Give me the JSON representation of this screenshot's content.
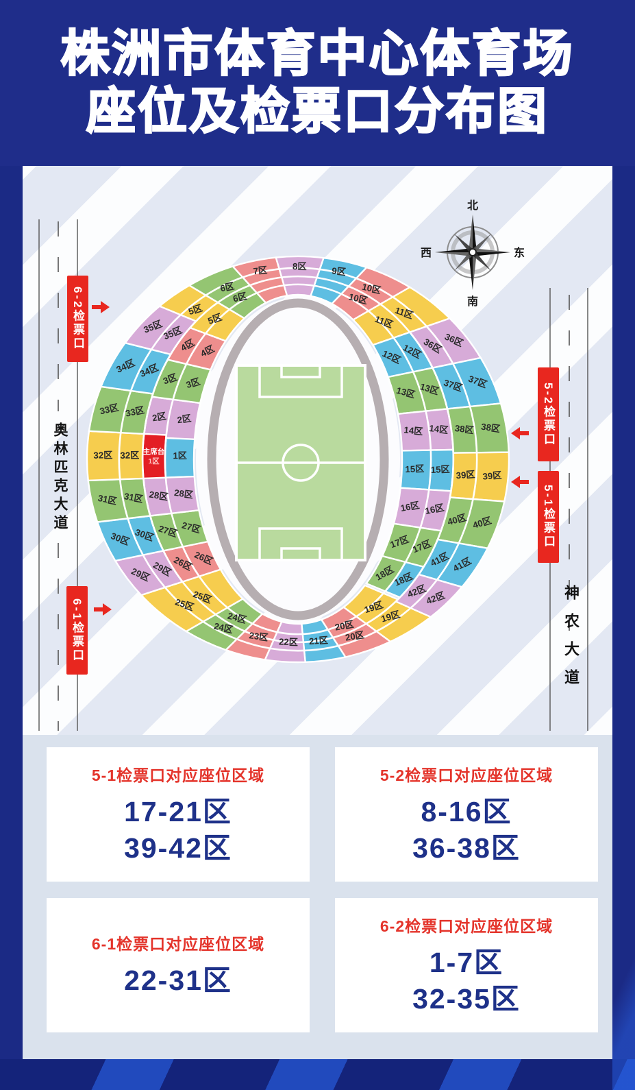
{
  "title": {
    "line1": "株洲市体育中心体育场",
    "line2": "座位及检票口分布图"
  },
  "compass": {
    "north": "北",
    "south": "南",
    "west": "西",
    "east": "东"
  },
  "roads": {
    "left": "奥林匹克大道",
    "right": "神农大道"
  },
  "gates": {
    "g62": "6-2检票口",
    "g61": "6-1检票口",
    "g52": "5-2检票口",
    "g51": "5-1检票口"
  },
  "cards": [
    {
      "title": "5-1检票口对应座位区域",
      "lines": [
        "17-21区",
        "39-42区"
      ]
    },
    {
      "title": "5-2检票口对应座位区域",
      "lines": [
        "8-16区",
        "36-38区"
      ]
    },
    {
      "title": "6-1检票口对应座位区域",
      "lines": [
        "22-31区"
      ]
    },
    {
      "title": "6-2检票口对应座位区域",
      "lines": [
        "1-7区",
        "32-35区"
      ]
    }
  ],
  "colors": {
    "yellow": "#F6CD4E",
    "green": "#94C572",
    "salmon": "#EE8E8D",
    "plum": "#D7ABD8",
    "blue": "#5EBEE2",
    "vip": "#E31E24",
    "gate": "#E8271F",
    "card_title": "#E4342B",
    "card_number": "#1E3189",
    "title_bg": "#1F2D8A",
    "track": "#B6AEB1",
    "pitch": "#B9DA9E"
  },
  "stadium": {
    "vip": {
      "label": "主席台",
      "sub": "1区",
      "a0": 534,
      "a1": 548,
      "t0": 0.27,
      "t1": 0.48
    },
    "sections": [
      {
        "n": "1区",
        "c": "blue",
        "a0": 534,
        "a1": 548,
        "t0": 0,
        "t1": 0.27,
        "lt": [
          0.13
        ]
      },
      {
        "n": "2区",
        "c": "plum",
        "a0": 187,
        "a1": 200,
        "t0": 0,
        "t1": 0.48,
        "lt": [
          0.12,
          0.36
        ]
      },
      {
        "n": "3区",
        "c": "green",
        "a0": 200,
        "a1": 213,
        "t0": 0,
        "t1": 0.48,
        "lt": [
          0.12,
          0.36
        ]
      },
      {
        "n": "4区",
        "c": "salmon",
        "a0": 213,
        "a1": 226,
        "t0": 0,
        "t1": 0.48,
        "lt": [
          0.12,
          0.36
        ]
      },
      {
        "n": "5区",
        "c": "yellow",
        "a0": 226,
        "a1": 239,
        "t0": 0,
        "t1": 1,
        "lt": [
          0.3,
          0.6
        ]
      },
      {
        "n": "6区",
        "c": "green",
        "a0": 239,
        "a1": 252,
        "t0": 0,
        "t1": 1,
        "lt": [
          0.33,
          0.62
        ]
      },
      {
        "n": "7区",
        "c": "salmon",
        "a0": 252,
        "a1": 264,
        "t0": 0,
        "t1": 1,
        "lt": [
          0.72
        ]
      },
      {
        "n": "8区",
        "c": "plum",
        "a0": 264,
        "a1": 277,
        "t0": 0,
        "t1": 1,
        "lt": [
          0.72
        ]
      },
      {
        "n": "9区",
        "c": "blue",
        "a0": 277,
        "a1": 289,
        "t0": 0,
        "t1": 1,
        "lt": [
          0.72
        ]
      },
      {
        "n": "10区",
        "c": "salmon",
        "a0": 289,
        "a1": 302,
        "t0": 0,
        "t1": 1,
        "lt": [
          0.33,
          0.62
        ]
      },
      {
        "n": "11区",
        "c": "yellow",
        "a0": 302,
        "a1": 316,
        "t0": 0,
        "t1": 1,
        "lt": [
          0.3,
          0.6
        ]
      },
      {
        "n": "12区",
        "c": "blue",
        "a0": 316,
        "a1": 330,
        "t0": 0,
        "t1": 0.48,
        "lt": [
          0.12,
          0.36
        ]
      },
      {
        "n": "13区",
        "c": "green",
        "a0": 330,
        "a1": 344,
        "t0": 0,
        "t1": 0.48,
        "lt": [
          0.12,
          0.36
        ]
      },
      {
        "n": "14区",
        "c": "plum",
        "a0": 344,
        "a1": 357,
        "t0": 0,
        "t1": 0.48,
        "lt": [
          0.12,
          0.36
        ]
      },
      {
        "n": "15区",
        "c": "blue",
        "a0": 357,
        "a1": 370,
        "t0": 0,
        "t1": 0.48,
        "lt": [
          0.12,
          0.36
        ]
      },
      {
        "n": "16区",
        "c": "plum",
        "a0": 370,
        "a1": 383,
        "t0": 0,
        "t1": 0.48,
        "lt": [
          0.12,
          0.36
        ]
      },
      {
        "n": "17区",
        "c": "green",
        "a0": 383,
        "a1": 396,
        "t0": 0,
        "t1": 0.48,
        "lt": [
          0.12,
          0.36
        ]
      },
      {
        "n": "18区",
        "c": "green",
        "a0": 396,
        "a1": 409,
        "t0": 0,
        "t1": 0.27,
        "lt": [
          0.13
        ]
      },
      {
        "n": "18区",
        "c": "blue",
        "a0": 396,
        "a1": 409,
        "t0": 0.27,
        "t1": 0.48,
        "lt": [
          0.37
        ]
      },
      {
        "n": "19区",
        "c": "yellow",
        "a0": 410,
        "a1": 424,
        "t0": 0,
        "t1": 1,
        "lt": [
          0.33,
          0.62
        ]
      },
      {
        "n": "20区",
        "c": "salmon",
        "a0": 424,
        "a1": 437,
        "t0": 0,
        "t1": 1,
        "lt": [
          0.33,
          0.62
        ]
      },
      {
        "n": "21区",
        "c": "blue",
        "a0": 437,
        "a1": 448,
        "t0": 0,
        "t1": 1,
        "lt": [
          0.5
        ]
      },
      {
        "n": "22区",
        "c": "plum",
        "a0": 448,
        "a1": 459,
        "t0": 0,
        "t1": 1,
        "lt": [
          0.5
        ]
      },
      {
        "n": "23区",
        "c": "salmon",
        "a0": 459,
        "a1": 470,
        "t0": 0,
        "t1": 1,
        "lt": [
          0.5
        ]
      },
      {
        "n": "24区",
        "c": "green",
        "a0": 470,
        "a1": 482,
        "t0": 0,
        "t1": 1,
        "lt": [
          0.33,
          0.62
        ]
      },
      {
        "n": "25区",
        "c": "yellow",
        "a0": 482,
        "a1": 498,
        "t0": 0,
        "t1": 1,
        "lt": [
          0.42,
          0.68
        ]
      },
      {
        "n": "26区",
        "c": "salmon",
        "a0": 498,
        "a1": 510,
        "t0": 0,
        "t1": 0.48,
        "lt": [
          0.12,
          0.36
        ]
      },
      {
        "n": "27区",
        "c": "green",
        "a0": 510,
        "a1": 522,
        "t0": 0,
        "t1": 0.48,
        "lt": [
          0.12,
          0.36
        ]
      },
      {
        "n": "28区",
        "c": "plum",
        "a0": 522,
        "a1": 534,
        "t0": 0,
        "t1": 0.48,
        "lt": [
          0.12,
          0.36
        ]
      },
      {
        "n": "29区",
        "c": "plum",
        "a0": 498,
        "a1": 510,
        "t0": 0.48,
        "t1": 1,
        "lt": [
          0.6,
          0.85
        ]
      },
      {
        "n": "30区",
        "c": "blue",
        "a0": 510,
        "a1": 522,
        "t0": 0.48,
        "t1": 1,
        "lt": [
          0.6,
          0.85
        ]
      },
      {
        "n": "31区",
        "c": "green",
        "a0": 522,
        "a1": 534,
        "t0": 0.48,
        "t1": 1,
        "lt": [
          0.6,
          0.85
        ]
      },
      {
        "n": "32区",
        "c": "yellow",
        "a0": 534,
        "a1": 548,
        "t0": 0.48,
        "t1": 1,
        "lt": [
          0.6,
          0.85
        ]
      },
      {
        "n": "33区",
        "c": "green",
        "a0": 188,
        "a1": 201,
        "t0": 0.48,
        "t1": 1,
        "lt": [
          0.6,
          0.85
        ]
      },
      {
        "n": "34区",
        "c": "blue",
        "a0": 201,
        "a1": 215,
        "t0": 0.48,
        "t1": 1,
        "lt": [
          0.6,
          0.85
        ]
      },
      {
        "n": "35区",
        "c": "plum",
        "a0": 215,
        "a1": 229,
        "t0": 0.48,
        "t1": 1,
        "lt": [
          0.6,
          0.85
        ]
      },
      {
        "n": "36区",
        "c": "plum",
        "a0": 316,
        "a1": 330,
        "t0": 0.48,
        "t1": 1,
        "lt": [
          0.6,
          0.85
        ]
      },
      {
        "n": "37区",
        "c": "blue",
        "a0": 330,
        "a1": 344,
        "t0": 0.48,
        "t1": 1,
        "lt": [
          0.6,
          0.85
        ]
      },
      {
        "n": "38区",
        "c": "green",
        "a0": 344,
        "a1": 358,
        "t0": 0.48,
        "t1": 1,
        "lt": [
          0.6,
          0.85
        ]
      },
      {
        "n": "39区",
        "c": "yellow",
        "a0": 358,
        "a1": 372,
        "t0": 0.48,
        "t1": 1,
        "lt": [
          0.6,
          0.85
        ]
      },
      {
        "n": "40区",
        "c": "green",
        "a0": 372,
        "a1": 386,
        "t0": 0.48,
        "t1": 1,
        "lt": [
          0.6,
          0.85
        ]
      },
      {
        "n": "41区",
        "c": "blue",
        "a0": 386,
        "a1": 399,
        "t0": 0.48,
        "t1": 1,
        "lt": [
          0.6,
          0.85
        ]
      },
      {
        "n": "42区",
        "c": "plum",
        "a0": 399,
        "a1": 411,
        "t0": 0.48,
        "t1": 1,
        "lt": [
          0.6,
          0.85
        ]
      }
    ]
  }
}
